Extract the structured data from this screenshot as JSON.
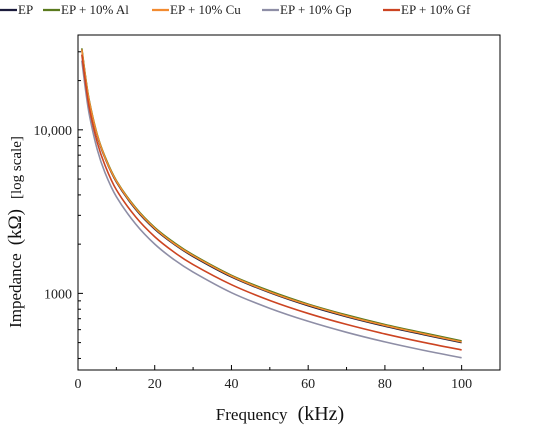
{
  "chart_data": {
    "type": "line",
    "xlabel": {
      "main": "Frequency",
      "unit": "(kHz)"
    },
    "ylabel": {
      "main": "Impedance",
      "unit": "(kΩ)",
      "note": "[log scale]"
    },
    "xlim": [
      0,
      110
    ],
    "ylim": [
      340,
      38000
    ],
    "yscale": "log",
    "x_ticks": [
      0,
      20,
      40,
      60,
      80,
      100
    ],
    "x_tick_labels": [
      "0",
      "20",
      "40",
      "60",
      "80",
      "100"
    ],
    "y_ticks": [
      1000,
      10000
    ],
    "y_tick_labels": [
      "1000",
      "10,000"
    ],
    "grid": false,
    "legend_position": "top",
    "x": [
      1,
      2,
      3,
      5,
      7,
      10,
      15,
      20,
      25,
      30,
      40,
      50,
      60,
      70,
      80,
      90,
      100
    ],
    "series": [
      {
        "name": "EP",
        "color": "#1c1c3c",
        "values": [
          31000,
          20500,
          14600,
          9200,
          6750,
          4800,
          3270,
          2470,
          2000,
          1680,
          1260,
          1010,
          840,
          720,
          630,
          560,
          500
        ]
      },
      {
        "name": "EP + 10% Al",
        "color": "#5a7a1e",
        "values": [
          31500,
          20900,
          14900,
          9400,
          6900,
          4900,
          3350,
          2530,
          2050,
          1720,
          1290,
          1035,
          860,
          738,
          645,
          574,
          512
        ]
      },
      {
        "name": "EP + 10% Cu",
        "color": "#f28b30",
        "values": [
          31000,
          20600,
          14700,
          9300,
          6800,
          4850,
          3310,
          2500,
          2020,
          1700,
          1275,
          1020,
          850,
          728,
          637,
          566,
          505
        ]
      },
      {
        "name": "EP + 10% Gp",
        "color": "#8e8ea6",
        "values": [
          26500,
          17300,
          12200,
          7600,
          5500,
          3900,
          2660,
          2000,
          1610,
          1350,
          1010,
          810,
          675,
          578,
          505,
          449,
          404
        ]
      },
      {
        "name": "EP + 10% Gf",
        "color": "#cc4422",
        "values": [
          28800,
          19000,
          13400,
          8400,
          6100,
          4300,
          2940,
          2220,
          1790,
          1500,
          1130,
          905,
          754,
          646,
          565,
          502,
          451
        ]
      }
    ]
  }
}
